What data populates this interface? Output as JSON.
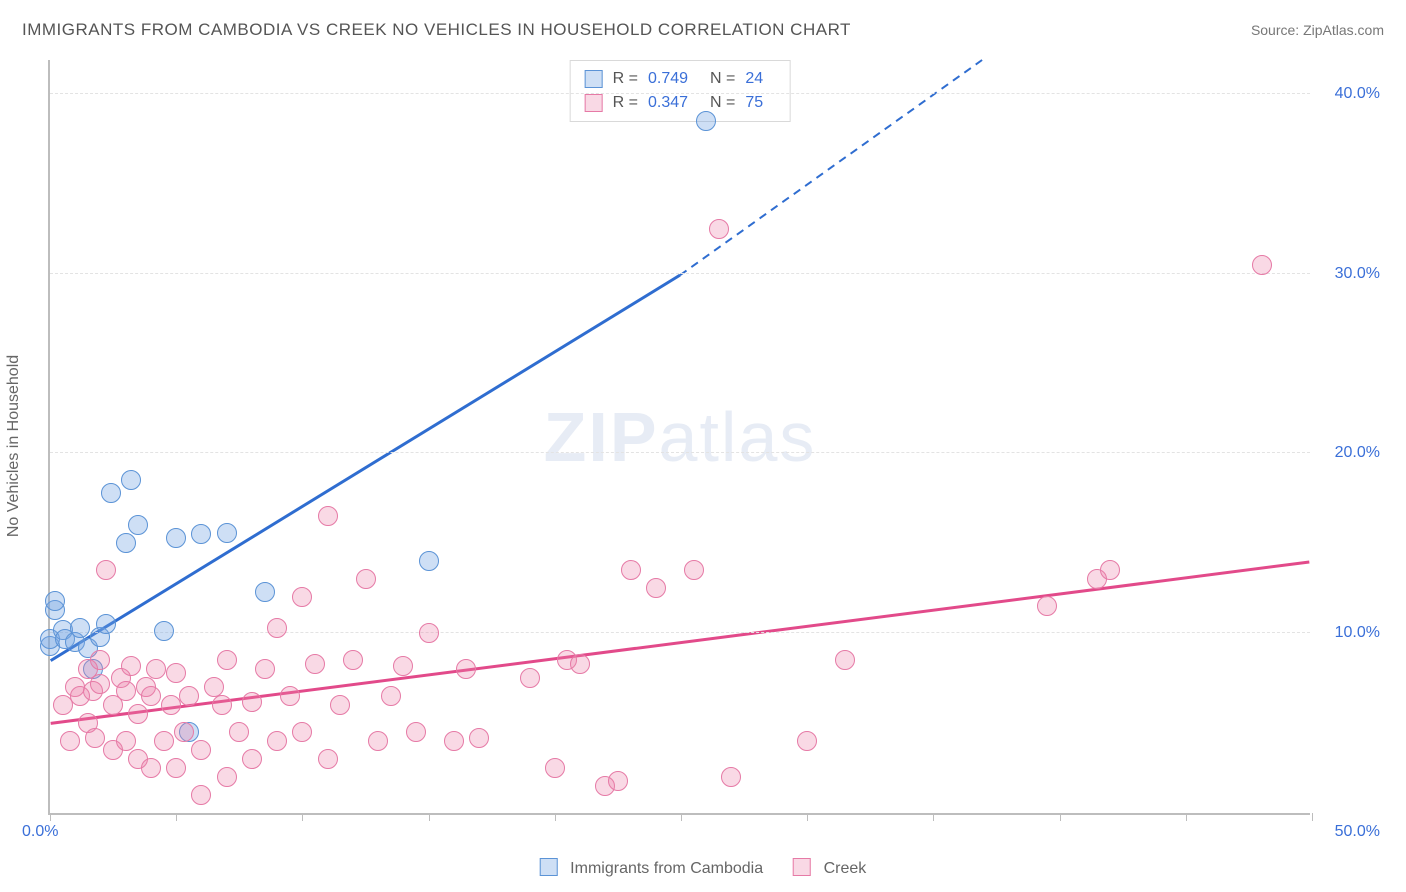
{
  "title": "IMMIGRANTS FROM CAMBODIA VS CREEK NO VEHICLES IN HOUSEHOLD CORRELATION CHART",
  "source_label": "Source: ",
  "source_name": "ZipAtlas.com",
  "ylabel": "No Vehicles in Household",
  "watermark_zip": "ZIP",
  "watermark_atlas": "atlas",
  "chart": {
    "type": "scatter",
    "xlim": [
      0,
      50
    ],
    "ylim": [
      0,
      42
    ],
    "x_ticks": [
      0,
      5,
      10,
      15,
      20,
      25,
      30,
      35,
      40,
      45,
      50
    ],
    "x_tick_labels": {
      "0": "0.0%",
      "50": "50.0%"
    },
    "y_ticks": [
      10,
      20,
      30,
      40
    ],
    "y_tick_labels": {
      "10": "10.0%",
      "20": "20.0%",
      "30": "30.0%",
      "40": "40.0%"
    },
    "background_color": "#ffffff",
    "grid_color": "#e3e3e3",
    "axis_color": "#bdbdbd",
    "tick_label_color": "#3a6fd8",
    "series": [
      {
        "name": "Immigrants from Cambodia",
        "fill": "rgba(114,164,225,0.35)",
        "stroke": "#5b93d6",
        "line_color": "#2f6dd0",
        "marker_radius": 10,
        "regression": {
          "x1": 0,
          "y1": 8.5,
          "x2": 25,
          "y2": 30,
          "dash_after": 25,
          "dash_x2": 37,
          "dash_y2": 42
        },
        "R": "0.749",
        "N": "24",
        "points": [
          [
            0,
            9.3
          ],
          [
            0,
            9.7
          ],
          [
            0.2,
            11.3
          ],
          [
            0.2,
            11.8
          ],
          [
            0.5,
            10.2
          ],
          [
            0.6,
            9.7
          ],
          [
            1.0,
            9.5
          ],
          [
            1.2,
            10.3
          ],
          [
            1.5,
            9.2
          ],
          [
            1.7,
            8.0
          ],
          [
            2.0,
            9.8
          ],
          [
            2.2,
            10.5
          ],
          [
            2.4,
            17.8
          ],
          [
            3.0,
            15.0
          ],
          [
            3.2,
            18.5
          ],
          [
            3.5,
            16.0
          ],
          [
            4.5,
            10.1
          ],
          [
            5.0,
            15.3
          ],
          [
            5.5,
            4.5
          ],
          [
            6.0,
            15.5
          ],
          [
            7.0,
            15.6
          ],
          [
            8.5,
            12.3
          ],
          [
            15.0,
            14.0
          ],
          [
            26.0,
            38.5
          ]
        ]
      },
      {
        "name": "Creek",
        "fill": "rgba(236,130,168,0.30)",
        "stroke": "#e67aa6",
        "line_color": "#e24a8a",
        "marker_radius": 10,
        "regression": {
          "x1": 0,
          "y1": 5,
          "x2": 50,
          "y2": 14
        },
        "R": "0.347",
        "N": "75",
        "points": [
          [
            0.5,
            6.0
          ],
          [
            0.8,
            4.0
          ],
          [
            1.0,
            7.0
          ],
          [
            1.2,
            6.5
          ],
          [
            1.5,
            8.0
          ],
          [
            1.5,
            5.0
          ],
          [
            1.7,
            6.8
          ],
          [
            1.8,
            4.2
          ],
          [
            2.0,
            7.2
          ],
          [
            2.0,
            8.5
          ],
          [
            2.2,
            13.5
          ],
          [
            2.5,
            6.0
          ],
          [
            2.5,
            3.5
          ],
          [
            2.8,
            7.5
          ],
          [
            3.0,
            4.0
          ],
          [
            3.0,
            6.8
          ],
          [
            3.2,
            8.2
          ],
          [
            3.5,
            3.0
          ],
          [
            3.5,
            5.5
          ],
          [
            3.8,
            7.0
          ],
          [
            4.0,
            2.5
          ],
          [
            4.0,
            6.5
          ],
          [
            4.2,
            8.0
          ],
          [
            4.5,
            4.0
          ],
          [
            4.8,
            6.0
          ],
          [
            5.0,
            2.5
          ],
          [
            5.0,
            7.8
          ],
          [
            5.3,
            4.5
          ],
          [
            5.5,
            6.5
          ],
          [
            6.0,
            3.5
          ],
          [
            6.0,
            1.0
          ],
          [
            6.5,
            7.0
          ],
          [
            6.8,
            6.0
          ],
          [
            7.0,
            2.0
          ],
          [
            7.0,
            8.5
          ],
          [
            7.5,
            4.5
          ],
          [
            8.0,
            6.2
          ],
          [
            8.0,
            3.0
          ],
          [
            8.5,
            8.0
          ],
          [
            9.0,
            4.0
          ],
          [
            9.0,
            10.3
          ],
          [
            9.5,
            6.5
          ],
          [
            10.0,
            12.0
          ],
          [
            10.0,
            4.5
          ],
          [
            10.5,
            8.3
          ],
          [
            11.0,
            3.0
          ],
          [
            11.0,
            16.5
          ],
          [
            11.5,
            6.0
          ],
          [
            12.0,
            8.5
          ],
          [
            12.5,
            13.0
          ],
          [
            13.0,
            4.0
          ],
          [
            13.5,
            6.5
          ],
          [
            14.0,
            8.2
          ],
          [
            14.5,
            4.5
          ],
          [
            15.0,
            10.0
          ],
          [
            16.0,
            4.0
          ],
          [
            16.5,
            8.0
          ],
          [
            17.0,
            4.2
          ],
          [
            19.0,
            7.5
          ],
          [
            20.0,
            2.5
          ],
          [
            20.5,
            8.5
          ],
          [
            21.0,
            8.3
          ],
          [
            22.0,
            1.5
          ],
          [
            22.5,
            1.8
          ],
          [
            23.0,
            13.5
          ],
          [
            24.0,
            12.5
          ],
          [
            25.5,
            13.5
          ],
          [
            26.5,
            32.5
          ],
          [
            27.0,
            2.0
          ],
          [
            30.0,
            4.0
          ],
          [
            31.5,
            8.5
          ],
          [
            39.5,
            11.5
          ],
          [
            41.5,
            13.0
          ],
          [
            42.0,
            13.5
          ],
          [
            48.0,
            30.5
          ]
        ]
      }
    ]
  },
  "legend_top_labels": {
    "R": "R =",
    "N": "N ="
  }
}
